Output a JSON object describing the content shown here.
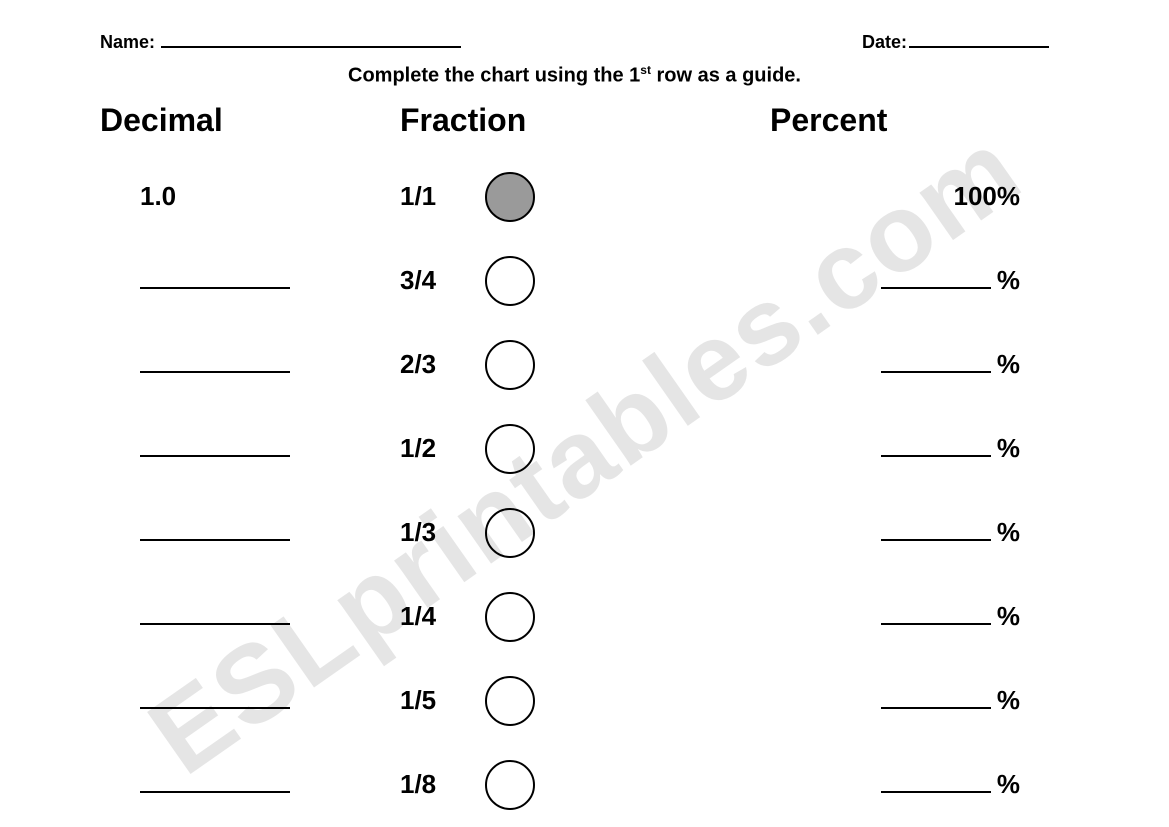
{
  "header": {
    "name_label": "Name:",
    "date_label": "Date:"
  },
  "instruction": {
    "prefix": "Complete the chart using the 1",
    "sup": "st",
    "suffix": " row as a guide."
  },
  "columns": {
    "decimal": "Decimal",
    "fraction": "Fraction",
    "percent": "Percent"
  },
  "pct_symbol": "%",
  "rows": [
    {
      "decimal": "1.0",
      "fraction": "1/1",
      "percent": "100%",
      "filled": true,
      "circle_fill": "#9a9a9a",
      "circle_stroke": "#000000",
      "is_guide": true
    },
    {
      "decimal": "",
      "fraction": "3/4",
      "percent": "",
      "filled": false,
      "circle_fill": "#ffffff",
      "circle_stroke": "#000000",
      "is_guide": false
    },
    {
      "decimal": "",
      "fraction": "2/3",
      "percent": "",
      "filled": false,
      "circle_fill": "#ffffff",
      "circle_stroke": "#000000",
      "is_guide": false
    },
    {
      "decimal": "",
      "fraction": "1/2",
      "percent": "",
      "filled": false,
      "circle_fill": "#ffffff",
      "circle_stroke": "#000000",
      "is_guide": false
    },
    {
      "decimal": "",
      "fraction": "1/3",
      "percent": "",
      "filled": false,
      "circle_fill": "#ffffff",
      "circle_stroke": "#000000",
      "is_guide": false
    },
    {
      "decimal": "",
      "fraction": "1/4",
      "percent": "",
      "filled": false,
      "circle_fill": "#ffffff",
      "circle_stroke": "#000000",
      "is_guide": false
    },
    {
      "decimal": "",
      "fraction": "1/5",
      "percent": "",
      "filled": false,
      "circle_fill": "#ffffff",
      "circle_stroke": "#000000",
      "is_guide": false
    },
    {
      "decimal": "",
      "fraction": "1/8",
      "percent": "",
      "filled": false,
      "circle_fill": "#ffffff",
      "circle_stroke": "#000000",
      "is_guide": false
    }
  ],
  "watermark": "ESLprintables.com",
  "style": {
    "circle_radius": 24,
    "circle_stroke_width": 2
  }
}
